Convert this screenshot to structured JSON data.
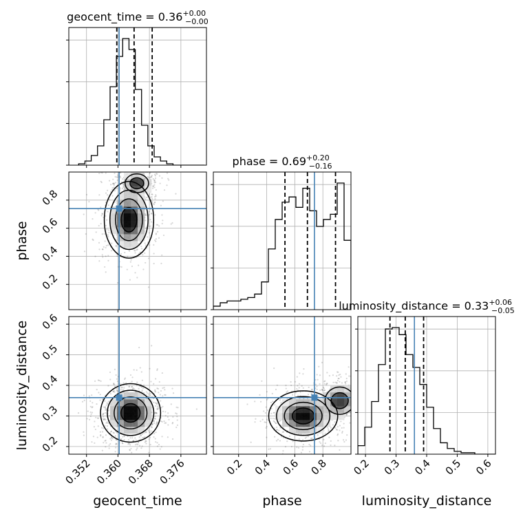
{
  "colors": {
    "truth": "#4682b4",
    "hist": "#000000",
    "grid": "#b0b0b0",
    "density": "#000000"
  },
  "chart_data": {
    "type": "corner",
    "parameters": [
      "geocent_time",
      "phase",
      "luminosity_distance"
    ],
    "titles": [
      {
        "base": "geocent_time = 0.36",
        "sup": "+0.00",
        "sub": "−0.00"
      },
      {
        "base": "phase = 0.69",
        "sup": "+0.20",
        "sub": "−0.16"
      },
      {
        "base": "luminosity_distance = 0.33",
        "sup": "+0.06",
        "sub": "−0.05"
      }
    ],
    "axis_labels": [
      "geocent_time",
      "phase",
      "luminosity_distance"
    ],
    "ranges": [
      [
        0.3475,
        0.3825
      ],
      [
        0.02,
        1.0
      ],
      [
        0.175,
        0.625
      ]
    ],
    "ticks": [
      {
        "values": [
          0.352,
          0.36,
          0.368,
          0.376
        ],
        "labels": [
          "0.352",
          "0.360",
          "0.368",
          "0.376"
        ]
      },
      {
        "values": [
          0.2,
          0.4,
          0.6,
          0.8
        ],
        "labels": [
          "0.2",
          "0.4",
          "0.6",
          "0.8"
        ]
      },
      {
        "values": [
          0.2,
          0.3,
          0.4,
          0.5,
          0.6
        ],
        "labels": [
          "0.2",
          "0.3",
          "0.4",
          "0.5",
          "0.6"
        ]
      }
    ],
    "truths": [
      0.3603,
      0.74,
      0.36
    ],
    "quantiles": [
      [
        0.3597,
        0.3641,
        0.3687
      ],
      [
        0.53,
        0.69,
        0.89
      ],
      [
        0.28,
        0.33,
        0.39
      ]
    ],
    "hist1d": [
      {
        "edges_start": 0.35,
        "bin_width": 0.0016,
        "counts": [
          1,
          3,
          7,
          14,
          33,
          57,
          79,
          92,
          84,
          55,
          29,
          14,
          6,
          3,
          1,
          0,
          0,
          0,
          0,
          0
        ]
      },
      {
        "edges_start": 0.02,
        "bin_width": 0.049,
        "counts": [
          2,
          4,
          5,
          5,
          6,
          7,
          9,
          16,
          35,
          52,
          62,
          65,
          59,
          70,
          57,
          48,
          52,
          55,
          73,
          40
        ]
      },
      {
        "edges_start": 0.175,
        "bin_width": 0.0225,
        "counts": [
          6,
          19,
          37,
          63,
          88,
          89,
          84,
          70,
          61,
          49,
          33,
          18,
          8,
          4,
          2,
          1,
          1,
          0,
          0,
          0
        ]
      }
    ],
    "hist2d": [
      {
        "x": 0,
        "y": 1,
        "modes": [
          {
            "cx": 0.3628,
            "cy": 0.66,
            "sx": 0.0023,
            "sy": 0.1,
            "w": 1.0
          },
          {
            "cx": 0.3648,
            "cy": 0.92,
            "sx": 0.002,
            "sy": 0.045,
            "w": 0.55
          }
        ]
      },
      {
        "x": 0,
        "y": 2,
        "modes": [
          {
            "cx": 0.3632,
            "cy": 0.31,
            "sx": 0.0028,
            "sy": 0.035,
            "w": 1.0
          }
        ]
      },
      {
        "x": 1,
        "y": 2,
        "modes": [
          {
            "cx": 0.66,
            "cy": 0.3,
            "sx": 0.09,
            "sy": 0.03,
            "w": 1.0
          },
          {
            "cx": 0.92,
            "cy": 0.35,
            "sx": 0.07,
            "sy": 0.03,
            "w": 0.6
          }
        ]
      }
    ],
    "grid": true
  }
}
